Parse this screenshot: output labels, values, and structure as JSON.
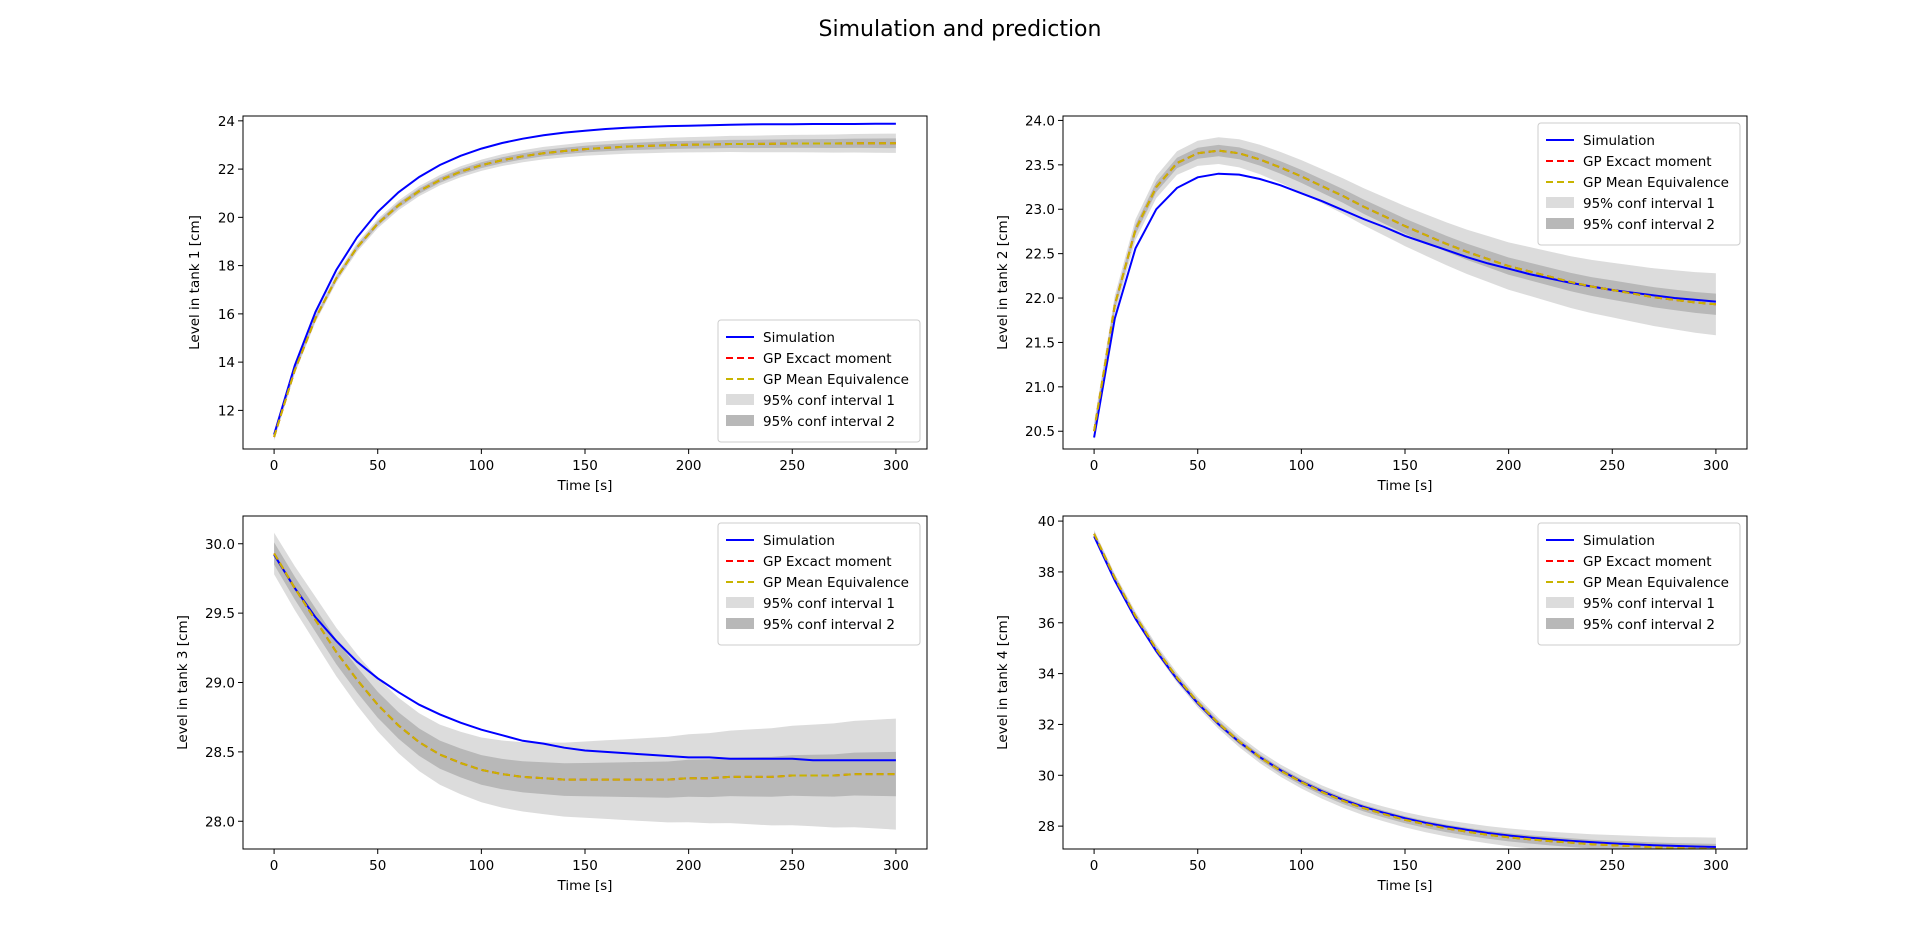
{
  "figure": {
    "title": "Simulation and prediction"
  },
  "colors": {
    "simulation": "#0000ff",
    "gp_exact": "#ff0000",
    "gp_mean": "#c8b400",
    "ci1": "#dcdcdc",
    "ci2": "#b8b8b8"
  },
  "legend_labels": [
    "Simulation",
    "GP Excact moment",
    "GP Mean Equivalence",
    "95% conf interval 1",
    "95% conf interval 2"
  ],
  "chart_data": [
    {
      "type": "line",
      "xlabel": "Time [s]",
      "ylabel": "Level in tank 1 [cm]",
      "xlim": [
        -15,
        315
      ],
      "ylim": [
        10.4,
        24.2
      ],
      "xticks": [
        0,
        50,
        100,
        150,
        200,
        250,
        300
      ],
      "yticks": [
        12,
        14,
        16,
        18,
        20,
        22,
        24
      ],
      "ytick_labels": [
        "12",
        "14",
        "16",
        "18",
        "20",
        "22",
        "24"
      ],
      "legend_loc": "lower-right",
      "x": [
        0,
        10,
        20,
        30,
        40,
        50,
        60,
        70,
        80,
        90,
        100,
        110,
        120,
        130,
        140,
        150,
        160,
        170,
        180,
        190,
        200,
        210,
        220,
        230,
        240,
        250,
        260,
        270,
        280,
        290,
        300
      ],
      "series": [
        {
          "name": "Simulation",
          "values": [
            11.0,
            13.86,
            16.08,
            17.82,
            19.17,
            20.22,
            21.04,
            21.67,
            22.17,
            22.55,
            22.85,
            23.08,
            23.26,
            23.4,
            23.51,
            23.59,
            23.66,
            23.71,
            23.75,
            23.78,
            23.8,
            23.82,
            23.84,
            23.85,
            23.86,
            23.86,
            23.87,
            23.87,
            23.87,
            23.88,
            23.88
          ]
        },
        {
          "name": "GP Excact moment",
          "values": [
            10.9,
            13.67,
            15.82,
            17.47,
            18.75,
            19.74,
            20.5,
            21.09,
            21.54,
            21.89,
            22.16,
            22.37,
            22.53,
            22.66,
            22.75,
            22.83,
            22.88,
            22.93,
            22.96,
            22.99,
            23.01,
            23.02,
            23.04,
            23.04,
            23.05,
            23.06,
            23.06,
            23.06,
            23.07,
            23.07,
            23.07
          ]
        },
        {
          "name": "GP Mean Equivalence",
          "values": [
            10.9,
            13.67,
            15.82,
            17.47,
            18.75,
            19.74,
            20.5,
            21.09,
            21.54,
            21.89,
            22.16,
            22.37,
            22.53,
            22.66,
            22.75,
            22.83,
            22.88,
            22.93,
            22.96,
            22.99,
            23.01,
            23.02,
            23.04,
            23.04,
            23.05,
            23.06,
            23.06,
            23.06,
            23.07,
            23.07,
            23.07
          ]
        }
      ],
      "band1_halfwidth": [
        0.15,
        0.4
      ],
      "band2_halfwidth": [
        0.08,
        0.2
      ]
    },
    {
      "type": "line",
      "xlabel": "Time [s]",
      "ylabel": "Level in tank 2 [cm]",
      "xlim": [
        -15,
        315
      ],
      "ylim": [
        20.3,
        24.05
      ],
      "xticks": [
        0,
        50,
        100,
        150,
        200,
        250,
        300
      ],
      "yticks": [
        20.5,
        21.0,
        21.5,
        22.0,
        22.5,
        23.0,
        23.5,
        24.0
      ],
      "ytick_labels": [
        "20.5",
        "21.0",
        "21.5",
        "22.0",
        "22.5",
        "23.0",
        "23.5",
        "24.0"
      ],
      "legend_loc": "upper-right",
      "x": [
        0,
        10,
        20,
        30,
        40,
        50,
        60,
        70,
        80,
        90,
        100,
        110,
        120,
        130,
        140,
        150,
        160,
        170,
        180,
        190,
        200,
        210,
        220,
        230,
        240,
        250,
        260,
        270,
        280,
        290,
        300
      ],
      "series": [
        {
          "name": "Simulation",
          "values": [
            20.43,
            21.77,
            22.56,
            23.0,
            23.24,
            23.36,
            23.4,
            23.39,
            23.34,
            23.27,
            23.18,
            23.09,
            22.99,
            22.89,
            22.8,
            22.7,
            22.62,
            22.54,
            22.46,
            22.39,
            22.33,
            22.27,
            22.22,
            22.17,
            22.13,
            22.09,
            22.06,
            22.03,
            22.0,
            21.98,
            21.96
          ]
        },
        {
          "name": "GP Excact moment",
          "values": [
            20.5,
            21.92,
            22.77,
            23.25,
            23.52,
            23.63,
            23.66,
            23.63,
            23.56,
            23.47,
            23.37,
            23.26,
            23.15,
            23.03,
            22.92,
            22.81,
            22.71,
            22.61,
            22.52,
            22.44,
            22.36,
            22.3,
            22.24,
            22.18,
            22.13,
            22.09,
            22.05,
            22.01,
            21.98,
            21.95,
            21.93
          ]
        },
        {
          "name": "GP Mean Equivalence",
          "values": [
            20.5,
            21.92,
            22.77,
            23.25,
            23.52,
            23.63,
            23.66,
            23.63,
            23.56,
            23.47,
            23.37,
            23.26,
            23.15,
            23.03,
            22.92,
            22.81,
            22.71,
            22.61,
            22.52,
            22.44,
            22.36,
            22.3,
            22.24,
            22.18,
            22.13,
            22.09,
            22.05,
            22.01,
            21.98,
            21.95,
            21.93
          ]
        }
      ],
      "band1_halfwidth": [
        0.1,
        0.35
      ],
      "band2_halfwidth": [
        0.05,
        0.12
      ]
    },
    {
      "type": "line",
      "xlabel": "Time [s]",
      "ylabel": "Level in tank 3 [cm]",
      "xlim": [
        -15,
        315
      ],
      "ylim": [
        27.8,
        30.2
      ],
      "xticks": [
        0,
        50,
        100,
        150,
        200,
        250,
        300
      ],
      "yticks": [
        28.0,
        28.5,
        29.0,
        29.5,
        30.0
      ],
      "ytick_labels": [
        "28.0",
        "28.5",
        "29.0",
        "29.5",
        "30.0"
      ],
      "legend_loc": "upper-right",
      "x": [
        0,
        10,
        20,
        30,
        40,
        50,
        60,
        70,
        80,
        90,
        100,
        110,
        120,
        130,
        140,
        150,
        160,
        170,
        180,
        190,
        200,
        210,
        220,
        230,
        240,
        250,
        260,
        270,
        280,
        290,
        300
      ],
      "series": [
        {
          "name": "Simulation",
          "values": [
            29.92,
            29.68,
            29.47,
            29.3,
            29.15,
            29.03,
            28.93,
            28.84,
            28.77,
            28.71,
            28.66,
            28.62,
            28.58,
            28.56,
            28.53,
            28.51,
            28.5,
            28.49,
            28.48,
            28.47,
            28.46,
            28.46,
            28.45,
            28.45,
            28.45,
            28.45,
            28.44,
            28.44,
            28.44,
            28.44,
            28.44
          ]
        },
        {
          "name": "GP Excact moment",
          "values": [
            29.93,
            29.68,
            29.45,
            29.22,
            29.02,
            28.84,
            28.69,
            28.57,
            28.48,
            28.42,
            28.37,
            28.34,
            28.32,
            28.31,
            28.3,
            28.3,
            28.3,
            28.3,
            28.3,
            28.3,
            28.31,
            28.31,
            28.32,
            28.32,
            28.32,
            28.33,
            28.33,
            28.33,
            28.34,
            28.34,
            28.34
          ]
        },
        {
          "name": "GP Mean Equivalence",
          "values": [
            29.93,
            29.68,
            29.45,
            29.22,
            29.02,
            28.84,
            28.69,
            28.57,
            28.48,
            28.42,
            28.37,
            28.34,
            28.32,
            28.31,
            28.3,
            28.3,
            28.3,
            28.3,
            28.3,
            28.3,
            28.31,
            28.31,
            28.32,
            28.32,
            28.32,
            28.33,
            28.33,
            28.33,
            28.34,
            28.34,
            28.34
          ]
        }
      ],
      "band1_halfwidth": [
        0.15,
        0.4
      ],
      "band2_halfwidth": [
        0.08,
        0.16
      ]
    },
    {
      "type": "line",
      "xlabel": "Time [s]",
      "ylabel": "Level in tank 4 [cm]",
      "xlim": [
        -15,
        315
      ],
      "ylim": [
        27.1,
        40.2
      ],
      "xticks": [
        0,
        50,
        100,
        150,
        200,
        250,
        300
      ],
      "yticks": [
        28,
        30,
        32,
        34,
        36,
        38,
        40
      ],
      "ytick_labels": [
        "28",
        "30",
        "32",
        "34",
        "36",
        "38",
        "40"
      ],
      "legend_loc": "upper-right",
      "x": [
        0,
        10,
        20,
        30,
        40,
        50,
        60,
        70,
        80,
        90,
        100,
        110,
        120,
        130,
        140,
        150,
        160,
        170,
        180,
        190,
        200,
        210,
        220,
        230,
        240,
        250,
        260,
        270,
        280,
        290,
        300
      ],
      "series": [
        {
          "name": "Simulation",
          "values": [
            39.4,
            37.66,
            36.16,
            34.88,
            33.78,
            32.83,
            32.01,
            31.31,
            30.71,
            30.2,
            29.75,
            29.37,
            29.04,
            28.76,
            28.52,
            28.31,
            28.13,
            27.98,
            27.85,
            27.73,
            27.63,
            27.55,
            27.48,
            27.42,
            27.37,
            27.32,
            27.28,
            27.25,
            27.22,
            27.2,
            27.18
          ]
        },
        {
          "name": "GP Excact moment",
          "values": [
            39.5,
            37.77,
            36.26,
            34.96,
            33.84,
            32.87,
            32.04,
            31.33,
            30.71,
            30.18,
            29.73,
            29.34,
            29.0,
            28.71,
            28.47,
            28.25,
            28.07,
            27.91,
            27.78,
            27.66,
            27.56,
            27.48,
            27.41,
            27.35,
            27.29,
            27.25,
            27.21,
            27.17,
            27.14,
            27.12,
            27.1
          ]
        },
        {
          "name": "GP Mean Equivalence",
          "values": [
            39.5,
            37.77,
            36.26,
            34.96,
            33.84,
            32.87,
            32.04,
            31.33,
            30.71,
            30.18,
            29.73,
            29.34,
            29.0,
            28.71,
            28.47,
            28.25,
            28.07,
            27.91,
            27.78,
            27.66,
            27.56,
            27.48,
            27.41,
            27.35,
            27.29,
            27.25,
            27.21,
            27.17,
            27.14,
            27.12,
            27.1
          ]
        }
      ],
      "band1_halfwidth": [
        0.15,
        0.45
      ],
      "band2_halfwidth": [
        0.08,
        0.2
      ]
    }
  ]
}
